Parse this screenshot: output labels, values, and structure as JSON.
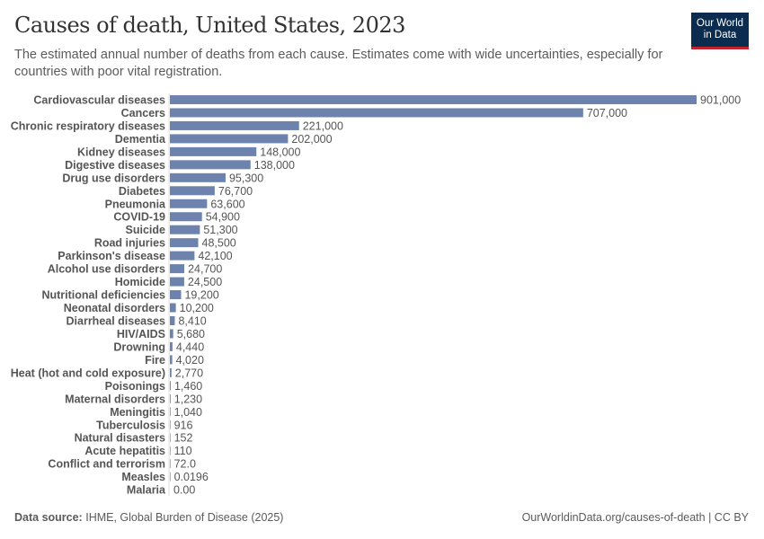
{
  "header": {
    "title": "Causes of death, United States, 2023",
    "subtitle": "The estimated annual number of deaths from each cause. Estimates come with wide uncertainties, especially for countries with poor vital registration.",
    "logo_line1": "Our World",
    "logo_line2": "in Data"
  },
  "footer": {
    "source_label": "Data source:",
    "source": "IHME, Global Burden of Disease (2025)",
    "url": "OurWorldinData.org/causes-of-death | CC BY"
  },
  "colors": {
    "bar": "#6d83ad",
    "logo_bg": "#0b2c4f",
    "logo_accent": "#c4232d"
  },
  "chart_data": {
    "type": "bar",
    "orientation": "horizontal",
    "title": "Causes of death, United States, 2023",
    "categories": [
      "Cardiovascular diseases",
      "Cancers",
      "Chronic respiratory diseases",
      "Dementia",
      "Kidney diseases",
      "Digestive diseases",
      "Drug use disorders",
      "Diabetes",
      "Pneumonia",
      "COVID-19",
      "Suicide",
      "Road injuries",
      "Parkinson's disease",
      "Alcohol use disorders",
      "Homicide",
      "Nutritional deficiencies",
      "Neonatal disorders",
      "Diarrheal diseases",
      "HIV/AIDS",
      "Drowning",
      "Fire",
      "Heat (hot and cold exposure)",
      "Poisonings",
      "Maternal disorders",
      "Meningitis",
      "Tuberculosis",
      "Natural disasters",
      "Acute hepatitis",
      "Conflict and terrorism",
      "Measles",
      "Malaria"
    ],
    "values": [
      901000,
      707000,
      221000,
      202000,
      148000,
      138000,
      95300,
      76700,
      63600,
      54900,
      51300,
      48500,
      42100,
      24700,
      24500,
      19200,
      10200,
      8410,
      5680,
      4440,
      4020,
      2770,
      1460,
      1230,
      1040,
      916,
      152,
      110,
      72.0,
      0.0196,
      0.0
    ],
    "labels": [
      "901,000",
      "707,000",
      "221,000",
      "202,000",
      "148,000",
      "138,000",
      "95,300",
      "76,700",
      "63,600",
      "54,900",
      "51,300",
      "48,500",
      "42,100",
      "24,700",
      "24,500",
      "19,200",
      "10,200",
      "8,410",
      "5,680",
      "4,440",
      "4,020",
      "2,770",
      "1,460",
      "1,230",
      "1,040",
      "916",
      "152",
      "110",
      "72.0",
      "0.0196",
      "0.00"
    ],
    "grid": false,
    "legend": "none"
  }
}
